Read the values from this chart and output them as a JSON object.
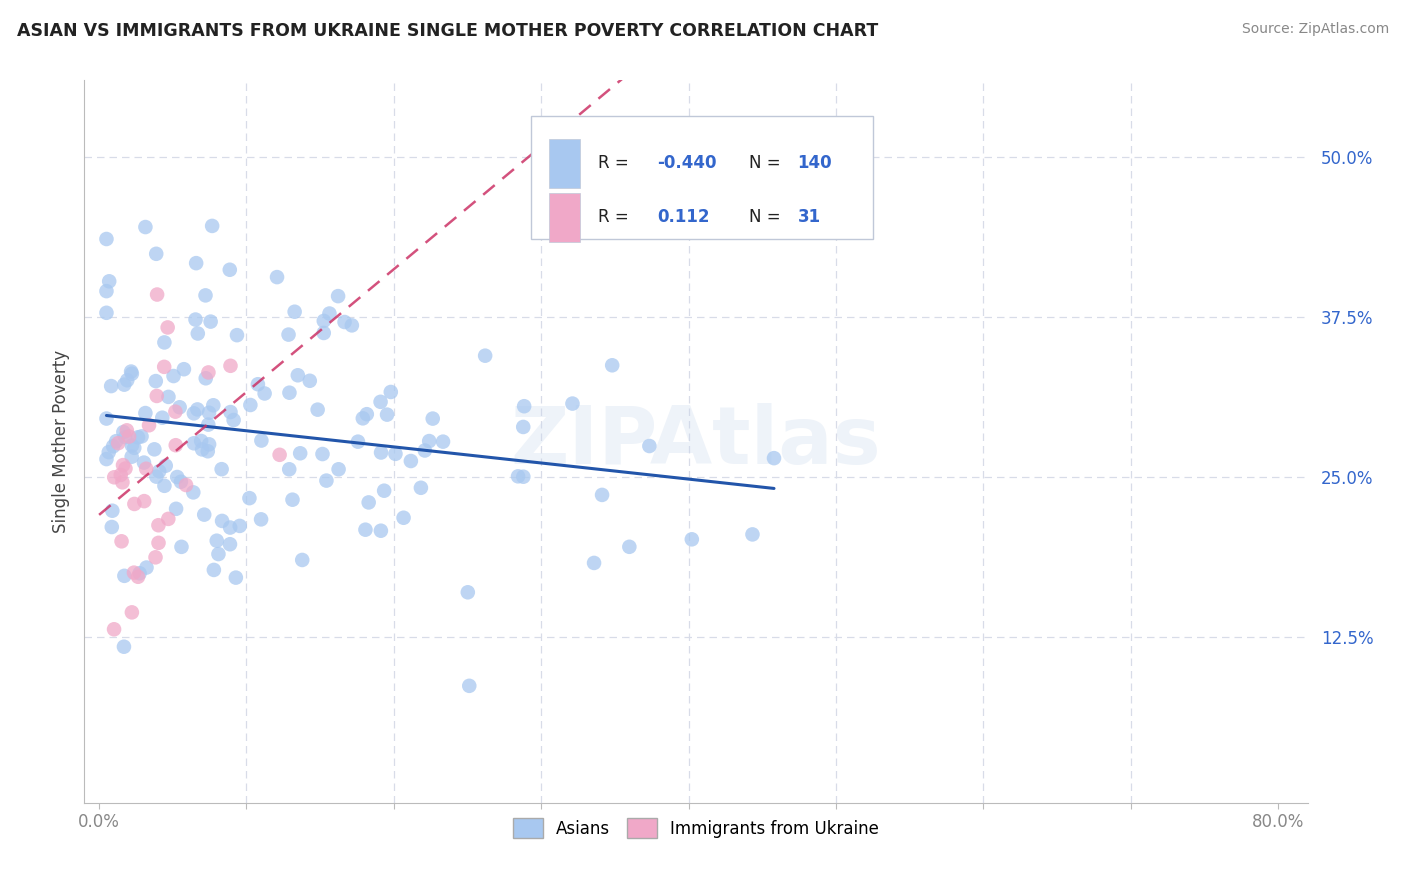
{
  "title": "ASIAN VS IMMIGRANTS FROM UKRAINE SINGLE MOTHER POVERTY CORRELATION CHART",
  "source": "Source: ZipAtlas.com",
  "ylabel": "Single Mother Poverty",
  "xlim": [
    0.0,
    0.82
  ],
  "ylim": [
    0.0,
    0.56
  ],
  "yticks_right": [
    0.125,
    0.25,
    0.375,
    0.5
  ],
  "ytick_right_labels": [
    "12.5%",
    "25.0%",
    "37.5%",
    "50.0%"
  ],
  "asian_color": "#a8c8f0",
  "ukraine_color": "#f0a8c8",
  "asian_line_color": "#2255aa",
  "ukraine_line_color": "#cc3366",
  "watermark": "ZIPAtlas",
  "asian_R": -0.44,
  "ukraine_R": 0.112,
  "asian_N": 140,
  "ukraine_N": 31,
  "legend_box_color": "#f0f4ff",
  "legend_border_color": "#c0c8d8",
  "legend_text_black": "#222222",
  "legend_text_blue": "#3366cc",
  "grid_color": "#d8dce8",
  "spine_color": "#bbbbbb",
  "tick_color": "#888888",
  "bg_color": "#ffffff"
}
